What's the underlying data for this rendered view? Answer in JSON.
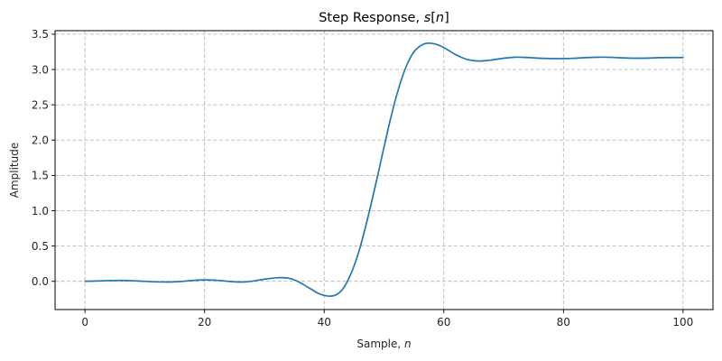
{
  "figure": {
    "title_prefix": "Step Response, ",
    "title_var": "s",
    "title_bracket_open": "[",
    "title_index": "n",
    "title_bracket_close": "]",
    "xlabel_prefix": "Sample, ",
    "xlabel_var": "n",
    "ylabel": "Amplitude",
    "line_color": "#1f77b4",
    "grid_color": "#b0b0b0"
  },
  "chart_data": {
    "type": "line",
    "title": "Step Response, s[n]",
    "xlabel": "Sample, n",
    "ylabel": "Amplitude",
    "xlim": [
      -5,
      105
    ],
    "ylim": [
      -0.4,
      3.55
    ],
    "xticks": [
      0,
      20,
      40,
      60,
      80,
      100
    ],
    "xtick_labels": [
      "0",
      "20",
      "40",
      "60",
      "80",
      "100"
    ],
    "yticks": [
      0.0,
      0.5,
      1.0,
      1.5,
      2.0,
      2.5,
      3.0,
      3.5
    ],
    "ytick_labels": [
      "0.0",
      "0.5",
      "1.0",
      "1.5",
      "2.0",
      "2.5",
      "3.0",
      "3.5"
    ],
    "grid": true,
    "grid_style": "dashed",
    "legend": null,
    "series": [
      {
        "name": "s[n]",
        "color": "#1f77b4",
        "x": [
          0,
          2,
          4,
          6,
          8,
          10,
          12,
          14,
          16,
          18,
          20,
          22,
          24,
          26,
          28,
          30,
          32,
          33,
          34,
          35,
          36,
          37,
          38,
          39,
          40,
          41,
          42,
          43,
          44,
          45,
          46,
          47,
          48,
          49,
          50,
          51,
          52,
          53,
          54,
          55,
          56,
          57,
          58,
          59,
          60,
          61,
          62,
          63,
          64,
          65,
          66,
          67,
          68,
          70,
          72,
          74,
          76,
          78,
          80,
          82,
          84,
          86,
          88,
          90,
          92,
          94,
          96,
          98,
          100
        ],
        "y": [
          0.0,
          0.005,
          0.01,
          0.012,
          0.008,
          0.0,
          -0.008,
          -0.01,
          -0.002,
          0.012,
          0.02,
          0.015,
          0.0,
          -0.01,
          0.002,
          0.03,
          0.05,
          0.052,
          0.045,
          0.02,
          -0.02,
          -0.07,
          -0.12,
          -0.17,
          -0.2,
          -0.21,
          -0.19,
          -0.12,
          0.02,
          0.22,
          0.48,
          0.8,
          1.15,
          1.52,
          1.9,
          2.27,
          2.6,
          2.88,
          3.1,
          3.25,
          3.33,
          3.37,
          3.37,
          3.35,
          3.31,
          3.26,
          3.21,
          3.17,
          3.14,
          3.125,
          3.12,
          3.125,
          3.135,
          3.16,
          3.175,
          3.17,
          3.16,
          3.155,
          3.155,
          3.16,
          3.17,
          3.175,
          3.172,
          3.165,
          3.16,
          3.162,
          3.168,
          3.17,
          3.17
        ]
      }
    ],
    "annotations": []
  }
}
